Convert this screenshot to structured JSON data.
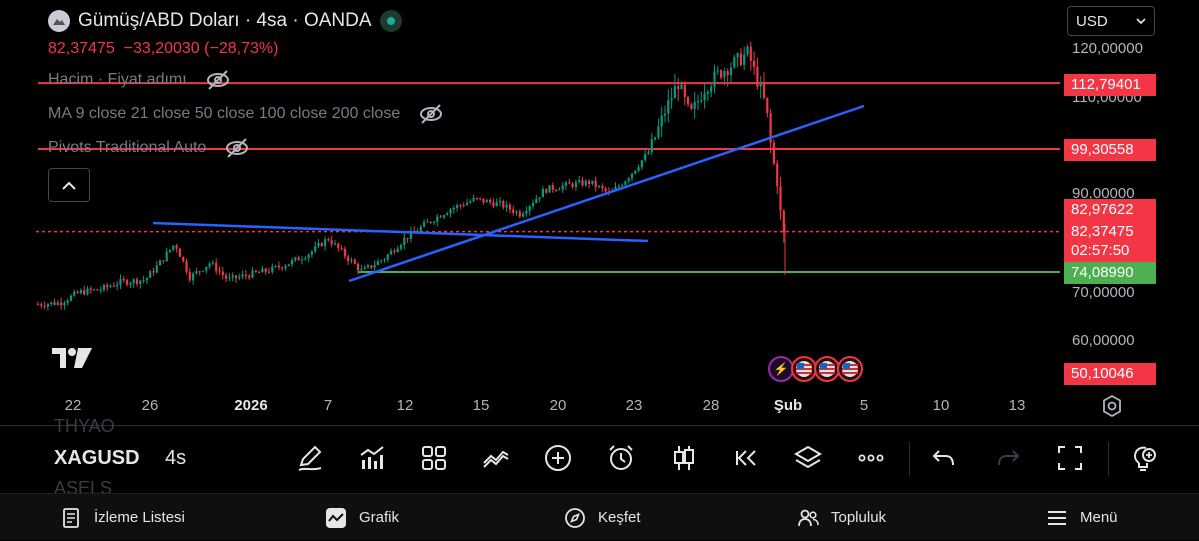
{
  "header": {
    "title": "Gümüş/ABD Doları · 4sa · OANDA",
    "price": "82,37475",
    "change": "−33,20030 (−28,73%)",
    "currency": "USD"
  },
  "indicators": [
    {
      "label": "Hacim · Fiyat adımı"
    },
    {
      "label": "MA 9 close 21 close 50 close 100 close 200 close"
    },
    {
      "label": "Pivots Traditional Auto"
    }
  ],
  "y_axis": {
    "ticks": [
      "120,00000",
      "110,00000",
      "90,00000",
      "70,00000",
      "60,00000"
    ],
    "labels": [
      {
        "text": "112,79401",
        "color": "#f23645"
      },
      {
        "text": "99,30558",
        "color": "#f23645"
      },
      {
        "text": "82,97622",
        "color": "#f23645"
      },
      {
        "text": "82,37475",
        "color": "#f23645"
      },
      {
        "text": "02:57:50",
        "color": "#f23645"
      },
      {
        "text": "74,08990",
        "color": "#4caf50"
      },
      {
        "text": "50,10046",
        "color": "#f23645"
      }
    ]
  },
  "x_axis": {
    "ticks": [
      "22",
      "26",
      "2026",
      "7",
      "12",
      "15",
      "20",
      "23",
      "28",
      "Şub",
      "5",
      "10",
      "13"
    ]
  },
  "chart_data": {
    "type": "candlestick",
    "ylim": [
      45,
      124
    ],
    "last_price": 82.37475,
    "horizontal_levels": [
      {
        "value": 112.79401,
        "color": "#f23645"
      },
      {
        "value": 99.30558,
        "color": "#f23645"
      },
      {
        "value": 82.37475,
        "color": "#f23645"
      },
      {
        "value": 74.0899,
        "color": "#4caf50"
      }
    ],
    "trendlines": [
      {
        "from": [
          "Dec 25",
          83.5
        ],
        "to": [
          "Jan 23",
          80.2
        ],
        "color": "#2962ff"
      },
      {
        "from": [
          "Jan 9",
          72.3
        ],
        "to": [
          "Feb 5",
          108.5
        ],
        "color": "#2962ff"
      }
    ],
    "series_up_color": "#089981",
    "series_down_color": "#f23645"
  },
  "toolbar": {
    "ghost_top": "THYAO",
    "symbol": "XAGUSD",
    "timeframe": "4s",
    "ghost_bottom": "ASELS"
  },
  "nav": {
    "watchlist": "İzleme Listesi",
    "chart": "Grafik",
    "explore": "Keşfet",
    "community": "Topluluk",
    "menu": "Menü"
  }
}
